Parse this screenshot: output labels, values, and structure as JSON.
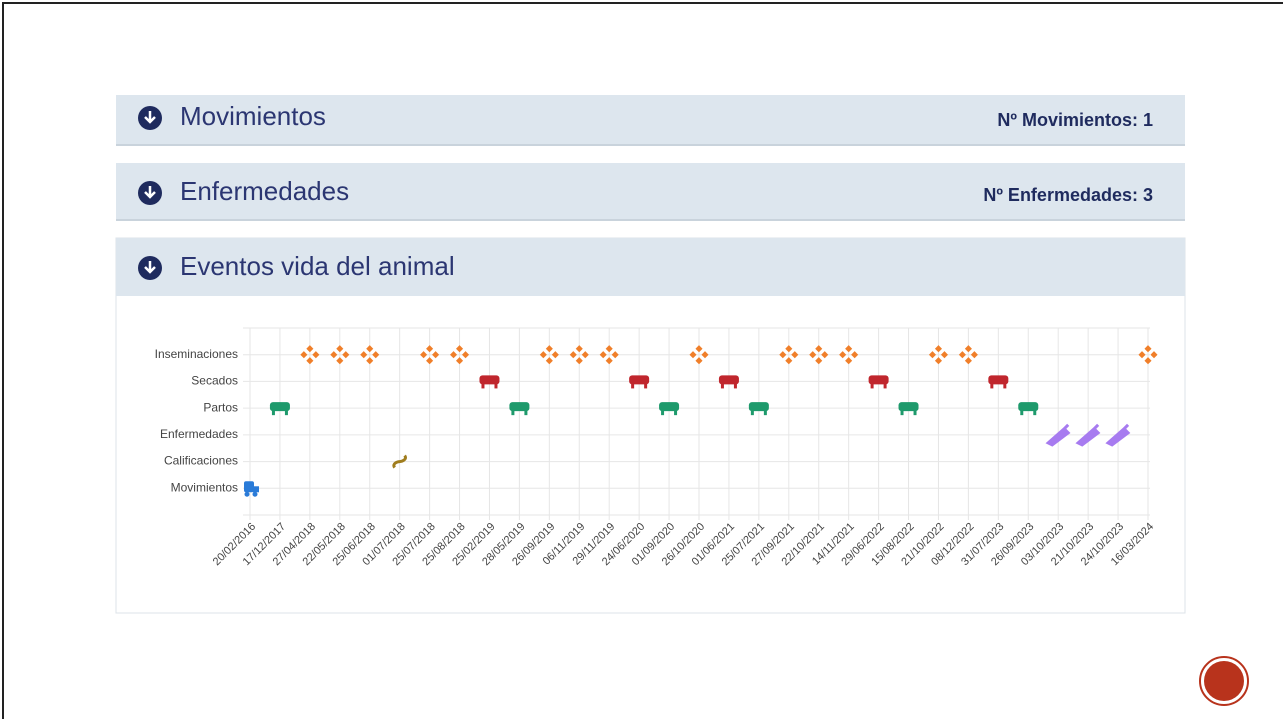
{
  "panels": [
    {
      "title": "Movimientos",
      "count_label": "Nº Movimientos: 1"
    },
    {
      "title": "Enfermedades",
      "count_label": "Nº Enfermedades: 3"
    },
    {
      "title": "Eventos vida del animal"
    }
  ],
  "chart_data": {
    "type": "timeline",
    "categories": [
      "20/02/2016",
      "17/12/2017",
      "27/04/2018",
      "22/05/2018",
      "25/06/2018",
      "01/07/2018",
      "25/07/2018",
      "25/08/2018",
      "25/02/2019",
      "28/05/2019",
      "26/09/2019",
      "06/11/2019",
      "29/11/2019",
      "24/06/2020",
      "01/09/2020",
      "26/10/2020",
      "01/06/2021",
      "25/07/2021",
      "27/09/2021",
      "22/10/2021",
      "14/11/2021",
      "29/06/2022",
      "15/08/2022",
      "21/10/2022",
      "08/12/2022",
      "31/07/2023",
      "26/09/2023",
      "03/10/2023",
      "21/10/2023",
      "24/10/2023",
      "16/03/2024"
    ],
    "y_categories": [
      "Inseminaciones",
      "Secados",
      "Partos",
      "Enfermedades",
      "Calificaciones",
      "Movimientos"
    ],
    "colors": [
      "#f07f2a",
      "#c0262d",
      "#1e9a6c",
      "#a77bf0",
      "#a07d1e",
      "#2a7bd8"
    ],
    "values": [
      "Movimientos",
      "Partos",
      "Inseminaciones",
      "Inseminaciones",
      "Inseminaciones",
      "Calificaciones",
      "Inseminaciones",
      "Inseminaciones",
      "Secados",
      "Partos",
      "Inseminaciones",
      "Inseminaciones",
      "Inseminaciones",
      "Secados",
      "Partos",
      "Inseminaciones",
      "Secados",
      "Partos",
      "Inseminaciones",
      "Inseminaciones",
      "Inseminaciones",
      "Secados",
      "Partos",
      "Inseminaciones",
      "Inseminaciones",
      "Secados",
      "Partos",
      "Enfermedades",
      "Enfermedades",
      "Enfermedades",
      "Inseminaciones"
    ],
    "grid": true
  }
}
